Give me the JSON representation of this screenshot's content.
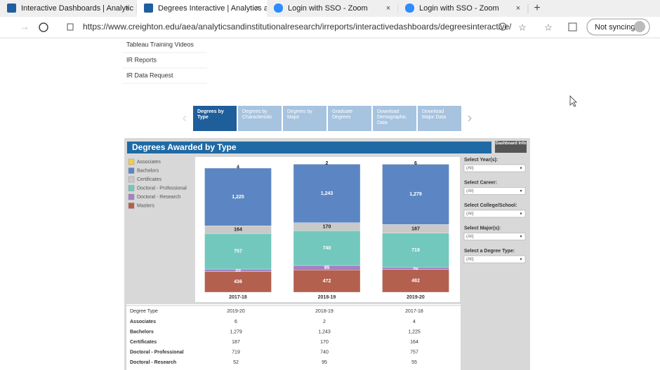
{
  "browser": {
    "tabs": [
      "Interactive Dashboards | Analytic",
      "Degrees Interactive | Analytics a",
      "Login with SSO - Zoom",
      "Login with SSO - Zoom"
    ],
    "active_tab": 1,
    "url": "https://www.creighton.edu/aea/analyticsandinstitutionalresearch/irreports/interactivedashboards/degreesinteractive/",
    "profile": "Not syncing"
  },
  "sidebar": {
    "links": [
      "Tableau Training Videos",
      "IR Reports",
      "IR Data Request"
    ]
  },
  "nav_tabs": {
    "items": [
      "Degrees by Type",
      "Degrees by Characteristic",
      "Degrees by Major",
      "Graduate Degrees",
      "Download Demographic Data",
      "Download Major Data"
    ],
    "active": 0
  },
  "dashboard": {
    "title": "Degrees Awarded by Type",
    "info_button": "Dashboard Info",
    "chart": {
      "type": "bar",
      "stacked": true,
      "categories": [
        "2017-18",
        "2018-19",
        "2019-20"
      ],
      "series": [
        {
          "name": "Associates",
          "color": "#f2cd4f",
          "values": [
            4,
            2,
            6
          ]
        },
        {
          "name": "Bachelors",
          "color": "#5b86c3",
          "values": [
            1225,
            1243,
            1279
          ],
          "value_labels": [
            "1,225",
            "1,243",
            "1,279"
          ]
        },
        {
          "name": "Certificates",
          "color": "#c9c9c9",
          "values": [
            164,
            170,
            187
          ]
        },
        {
          "name": "Doctoral - Professional",
          "color": "#72c8bc",
          "values": [
            757,
            740,
            719
          ]
        },
        {
          "name": "Doctoral - Research",
          "color": "#a681c6",
          "values": [
            55,
            95,
            52
          ]
        },
        {
          "name": "Masters",
          "color": "#b3604f",
          "values": [
            436,
            472,
            482
          ]
        }
      ]
    },
    "filters": [
      {
        "label": "Select Year(s):",
        "value": "(All)"
      },
      {
        "label": "Select Career:",
        "value": "(All)"
      },
      {
        "label": "Select College/School:",
        "value": "(All)"
      },
      {
        "label": "Select Major(s):",
        "value": "(All)"
      },
      {
        "label": "Select a Degree Type:",
        "value": "(All)"
      }
    ],
    "table": {
      "header": [
        "Degree Type",
        "2019-20",
        "2018-19",
        "2017-18"
      ],
      "rows": [
        [
          "Associates",
          "6",
          "2",
          "4"
        ],
        [
          "Bachelors",
          "1,279",
          "1,243",
          "1,225"
        ],
        [
          "Certificates",
          "187",
          "170",
          "164"
        ],
        [
          "Doctoral - Professional",
          "719",
          "740",
          "757"
        ],
        [
          "Doctoral - Research",
          "52",
          "95",
          "55"
        ]
      ]
    }
  }
}
